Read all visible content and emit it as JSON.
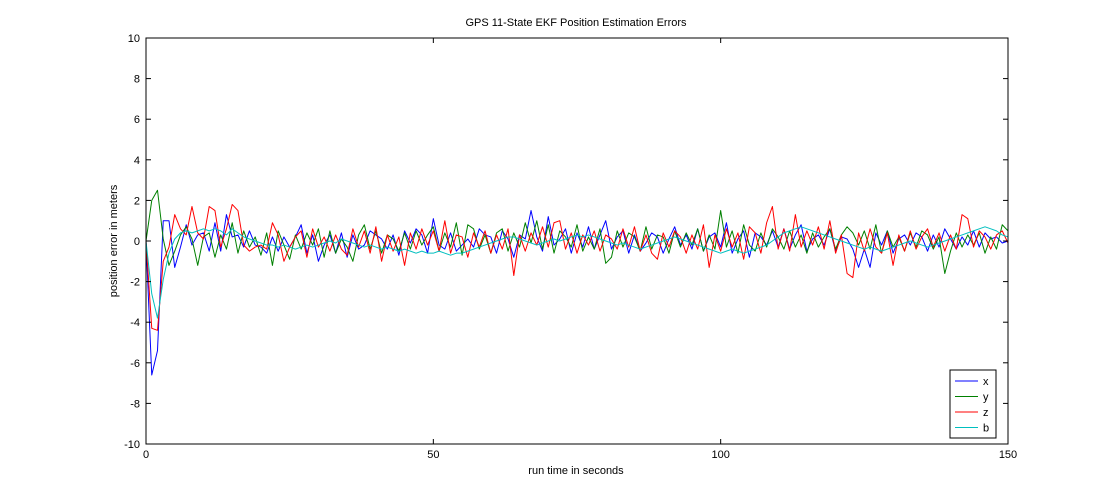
{
  "chart_data": {
    "type": "line",
    "title": "GPS 11-State EKF Position Estimation Errors",
    "xlabel": "run time in seconds",
    "ylabel": "position error in meters",
    "xlim": [
      0,
      150
    ],
    "ylim": [
      -10,
      10
    ],
    "xticks": [
      0,
      50,
      100,
      150
    ],
    "yticks": [
      -10,
      -8,
      -6,
      -4,
      -2,
      0,
      2,
      4,
      6,
      8,
      10
    ],
    "grid": false,
    "legend_position": "bottom-right",
    "x_start": 0,
    "x_step": 1,
    "series": [
      {
        "name": "x",
        "color": "#0000ff",
        "values": [
          0.0,
          -6.6,
          -5.4,
          1.0,
          1.0,
          -1.3,
          -0.3,
          0.8,
          -0.2,
          0.3,
          0.4,
          -0.5,
          0.9,
          -0.5,
          1.3,
          0.2,
          0.3,
          -0.3,
          0.5,
          -0.2,
          -0.3,
          -0.6,
          0.2,
          -0.5,
          0.2,
          -0.3,
          0.2,
          0.8,
          -0.6,
          0.3,
          -1.0,
          -0.2,
          0.3,
          -0.6,
          0.4,
          -0.8,
          0.3,
          -0.4,
          -0.2,
          0.5,
          0.3,
          0.1,
          -0.4,
          0.3,
          -0.7,
          0.5,
          -0.1,
          0.6,
          0.3,
          -0.6,
          1.1,
          -0.2,
          -0.4,
          0.4,
          -0.5,
          -0.2,
          0.1,
          -0.3,
          0.6,
          0.3,
          0.2,
          -0.6,
          0.5,
          0.1,
          -0.8,
          0.3,
          0.1,
          1.5,
          0.2,
          -0.5,
          1.2,
          -0.2,
          0.1,
          0.6,
          -0.6,
          0.4,
          -0.3,
          0.7,
          -0.4,
          0.3,
          1.0,
          -0.4,
          0.2,
          0.5,
          -0.6,
          0.3,
          -0.5,
          -0.1,
          0.4,
          0.2,
          -0.6,
          0.1,
          0.7,
          -0.2,
          0.3,
          -0.4,
          0.6,
          -0.5,
          0.2,
          0.4,
          -0.3,
          0.9,
          -0.6,
          0.1,
          0.5,
          -0.8,
          0.4,
          0.2,
          -0.2,
          0.5,
          -0.3,
          0.6,
          -0.4,
          0.3,
          0.8,
          -0.5,
          0.1,
          0.3,
          -0.2,
          0.6,
          -0.5,
          0.2,
          0.1,
          -0.4,
          -1.3,
          -0.4,
          -1.3,
          0.4,
          -0.2,
          0.5,
          -0.6,
          0.1,
          0.3,
          -0.2,
          0.4,
          0.2,
          -0.5,
          0.3,
          -0.3,
          0.6,
          0.1,
          -0.4,
          0.2,
          -0.2,
          0.5,
          -0.3,
          0.4,
          0.1,
          0.2,
          -0.1,
          0.0
        ]
      },
      {
        "name": "y",
        "color": "#008000",
        "values": [
          0.0,
          2.0,
          2.5,
          0.1,
          -1.2,
          -0.5,
          0.3,
          0.7,
          0.1,
          -1.2,
          0.2,
          0.4,
          -0.8,
          0.3,
          -0.4,
          0.9,
          -0.6,
          0.5,
          -0.3,
          0.2,
          -0.7,
          0.4,
          -1.2,
          0.5,
          -0.2,
          -0.9,
          0.3,
          -0.4,
          0.4,
          -0.2,
          0.6,
          -0.8,
          0.5,
          -0.6,
          0.1,
          -0.3,
          -1.0,
          0.3,
          0.8,
          -0.4,
          0.5,
          -0.6,
          0.3,
          0.1,
          -0.5,
          0.4,
          -0.4,
          0.5,
          -0.2,
          0.3,
          0.7,
          -0.5,
          0.4,
          -0.3,
          0.9,
          -0.7,
          0.8,
          0.6,
          -0.4,
          0.3,
          -0.6,
          0.4,
          0.6,
          -0.5,
          0.4,
          -0.3,
          0.9,
          -0.1,
          1.0,
          -0.4,
          0.8,
          -0.6,
          0.5,
          0.2,
          -0.3,
          0.8,
          -0.5,
          0.2,
          -0.4,
          0.6,
          -1.1,
          -0.8,
          0.5,
          -0.3,
          0.4,
          0.2,
          -0.5,
          0.7,
          -0.4,
          0.3,
          0.2,
          -0.6,
          0.5,
          -0.3,
          0.4,
          -0.2,
          0.6,
          -0.5,
          0.3,
          -0.4,
          1.5,
          -0.3,
          0.5,
          -0.6,
          0.8,
          -0.2,
          -0.5,
          0.4,
          -0.3,
          0.6,
          0.2,
          -0.4,
          0.5,
          -0.3,
          0.3,
          -0.6,
          0.4,
          -0.3,
          0.2,
          0.6,
          -0.4,
          0.3,
          0.7,
          0.4,
          -0.2,
          0.5,
          -0.4,
          0.8,
          -0.6,
          0.5,
          -0.3,
          0.2,
          -0.5,
          0.4,
          -0.3,
          0.5,
          0.3,
          -0.4,
          0.2,
          -1.6,
          -0.5,
          0.4,
          -0.3,
          0.3,
          -0.2,
          0.4,
          -0.6,
          0.2,
          -0.4,
          0.8,
          0.5
        ]
      },
      {
        "name": "z",
        "color": "#ff0000",
        "values": [
          0.0,
          -4.3,
          -4.4,
          -1.0,
          -0.3,
          1.3,
          0.6,
          0.3,
          1.7,
          0.4,
          0.1,
          1.7,
          1.5,
          -0.3,
          0.6,
          1.8,
          1.5,
          -0.2,
          -0.5,
          -0.3,
          -0.2,
          -0.4,
          0.9,
          0.3,
          -1.0,
          -0.3,
          0.2,
          0.5,
          -0.8,
          0.6,
          -0.3,
          0.2,
          -0.5,
          0.3,
          -0.4,
          -0.7,
          0.6,
          -0.3,
          0.5,
          -0.6,
          0.7,
          -1.0,
          0.3,
          -0.5,
          0.2,
          -1.2,
          0.4,
          -0.4,
          0.6,
          -0.2,
          0.5,
          -0.5,
          1.0,
          -0.6,
          0.3,
          0.2,
          -0.8,
          0.4,
          -0.3,
          0.5,
          -0.6,
          0.3,
          -0.4,
          0.6,
          -1.7,
          0.3,
          -0.5,
          0.4,
          -0.2,
          0.7,
          -0.3,
          0.9,
          1.0,
          -0.4,
          0.4,
          -0.6,
          0.3,
          -0.2,
          0.5,
          -0.5,
          0.3,
          0.1,
          -0.4,
          0.6,
          -0.3,
          0.7,
          -0.5,
          0.3,
          -0.6,
          -0.9,
          0.4,
          -0.3,
          0.5,
          0.2,
          -0.6,
          0.3,
          -0.4,
          0.8,
          -1.3,
          0.3,
          -0.5,
          0.6,
          -0.3,
          0.4,
          -0.9,
          0.7,
          0.4,
          -0.6,
          0.9,
          1.7,
          -0.4,
          0.6,
          -0.5,
          1.3,
          -0.3,
          0.5,
          -0.2,
          0.7,
          -0.4,
          1.0,
          -0.6,
          0.3,
          -1.6,
          -1.8,
          0.4,
          -0.5,
          0.6,
          -0.3,
          -0.6,
          0.4,
          -1.2,
          0.3,
          -0.5,
          0.5,
          -0.4,
          0.2,
          0.6,
          -0.3,
          0.4,
          -0.5,
          0.3,
          -0.4,
          1.3,
          1.1,
          -0.3,
          0.5,
          0.2,
          -0.4,
          0.3,
          0.5,
          -0.1
        ]
      },
      {
        "name": "b",
        "color": "#00bfbf",
        "values": [
          0.0,
          -2.6,
          -3.8,
          -1.9,
          -0.6,
          0.1,
          0.4,
          0.5,
          0.4,
          0.5,
          0.6,
          0.5,
          0.6,
          0.5,
          0.3,
          0.6,
          0.4,
          0.2,
          0.1,
          0.0,
          -0.1,
          -0.2,
          -0.2,
          -0.3,
          -0.2,
          -0.3,
          -0.4,
          -0.3,
          -0.2,
          -0.3,
          -0.2,
          -0.1,
          0.0,
          -0.1,
          0.1,
          0.0,
          -0.1,
          -0.2,
          -0.3,
          -0.2,
          -0.3,
          -0.4,
          -0.3,
          -0.4,
          -0.5,
          -0.4,
          -0.5,
          -0.6,
          -0.5,
          -0.6,
          -0.6,
          -0.5,
          -0.6,
          -0.7,
          -0.6,
          -0.6,
          -0.5,
          -0.4,
          -0.3,
          -0.2,
          -0.1,
          0.0,
          0.1,
          0.2,
          0.2,
          0.1,
          0.0,
          -0.1,
          -0.2,
          -0.1,
          0.0,
          0.1,
          0.0,
          0.1,
          0.2,
          0.3,
          0.2,
          0.3,
          0.2,
          0.1,
          0.0,
          -0.1,
          -0.2,
          -0.1,
          -0.2,
          -0.3,
          -0.4,
          -0.3,
          -0.2,
          -0.1,
          0.0,
          0.1,
          0.2,
          0.1,
          0.0,
          -0.1,
          -0.2,
          -0.3,
          -0.4,
          -0.5,
          -0.6,
          -0.5,
          -0.4,
          -0.5,
          -0.6,
          -0.5,
          -0.4,
          -0.3,
          -0.2,
          0.0,
          0.2,
          0.4,
          0.5,
          0.6,
          0.7,
          0.6,
          0.5,
          0.4,
          0.3,
          0.2,
          0.1,
          0.0,
          -0.1,
          -0.2,
          -0.3,
          -0.4,
          -0.3,
          -0.4,
          -0.5,
          -0.4,
          -0.3,
          -0.2,
          -0.1,
          0.0,
          -0.1,
          -0.2,
          -0.3,
          -0.2,
          -0.1,
          0.0,
          0.1,
          0.2,
          0.3,
          0.4,
          0.5,
          0.6,
          0.7,
          0.6,
          0.5,
          0.3,
          0.2
        ]
      }
    ]
  }
}
